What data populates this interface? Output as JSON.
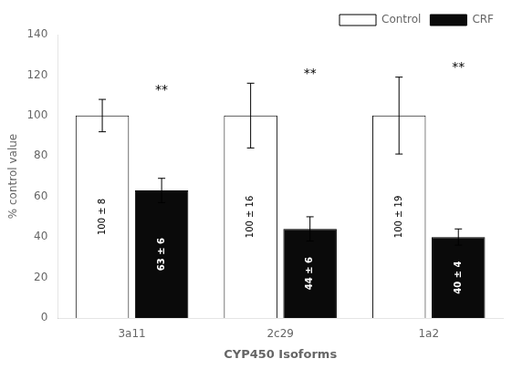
{
  "chart_data": {
    "type": "bar",
    "categories": [
      "3a11",
      "2c29",
      "1a2"
    ],
    "series": [
      {
        "name": "Control",
        "color": "#ffffff",
        "values": [
          100,
          100,
          100
        ],
        "errors": [
          8,
          16,
          19
        ],
        "value_labels": [
          "100 ± 8",
          "100 ± 16",
          "100 ± 19"
        ]
      },
      {
        "name": "CRF",
        "color": "#0a0a0a",
        "values": [
          63,
          44,
          40
        ],
        "errors": [
          6,
          6,
          4
        ],
        "value_labels": [
          "63 ± 6",
          "44 ± 6",
          "40 ± 4"
        ]
      }
    ],
    "data_labels": true,
    "annotations": [
      {
        "text": "**",
        "category": "3a11"
      },
      {
        "text": "**",
        "category": "2c29"
      },
      {
        "text": "**",
        "category": "1a2"
      }
    ],
    "xlabel": "CYP450 Isoforms",
    "ylabel": "% control value",
    "ylim": [
      0,
      140
    ],
    "yticks": [
      0,
      20,
      40,
      60,
      80,
      100,
      120,
      140
    ],
    "grid": false,
    "legend": "upper right"
  }
}
